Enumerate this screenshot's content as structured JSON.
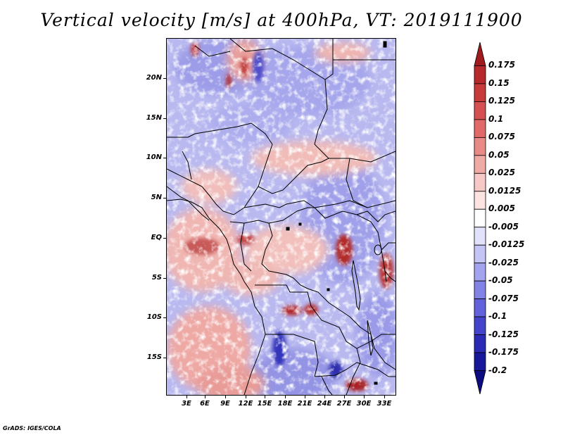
{
  "title": "Vertical velocity [m/s] at 400hPa, VT: 2019111900",
  "map": {
    "lat_labels": [
      "20N",
      "15N",
      "10N",
      "5N",
      "EQ",
      "5S",
      "10S",
      "15S"
    ],
    "lon_labels": [
      "3E",
      "6E",
      "9E",
      "12E",
      "15E",
      "18E",
      "21E",
      "24E",
      "27E",
      "30E",
      "33E"
    ]
  },
  "colorbar": {
    "levels": [
      "0.175",
      "0.15",
      "0.125",
      "0.1",
      "0.075",
      "0.05",
      "0.025",
      "0.0125",
      "0.005",
      "-0.005",
      "-0.0125",
      "-0.025",
      "-0.05",
      "-0.075",
      "-0.1",
      "-0.125",
      "-0.175",
      "-0.2"
    ],
    "colors": [
      "#a01b1e",
      "#b62a2c",
      "#c73b3b",
      "#d55050",
      "#e06a68",
      "#e88a86",
      "#f0aaa6",
      "#f6c9c6",
      "#fbe4e2",
      "#ffffff",
      "#e2e2fb",
      "#c5c5f5",
      "#a4a4ee",
      "#8383e6",
      "#6262dc",
      "#4343cc",
      "#2a2ab4",
      "#17179b",
      "#0c0c80"
    ]
  },
  "credit": "GrADS: IGES/COLA"
}
